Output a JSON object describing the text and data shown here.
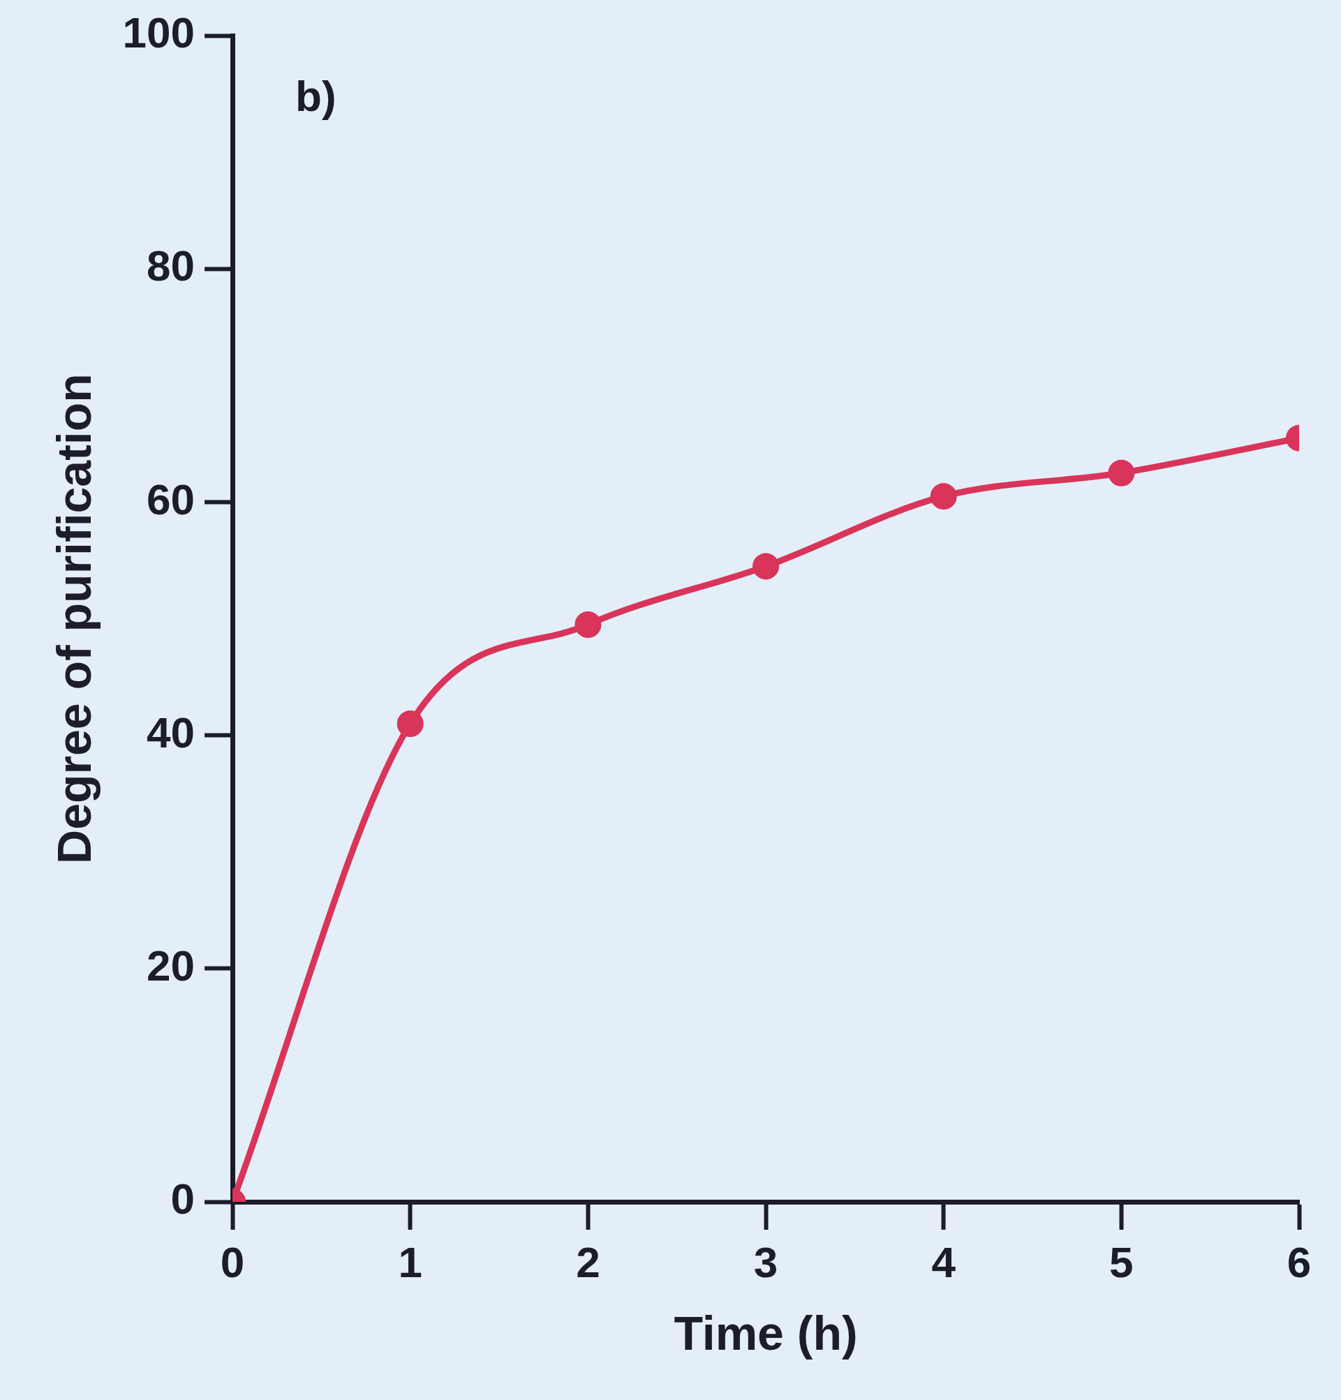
{
  "chart_data": {
    "type": "line",
    "xlabel": "Time (h)",
    "ylabel": "Degree of purification",
    "annotations": [
      "b)"
    ],
    "x": [
      0,
      1,
      2,
      3,
      4,
      5,
      6
    ],
    "series": [
      {
        "color": "#d9345a",
        "values": [
          0,
          41,
          49.5,
          54.5,
          60.5,
          62.5,
          65.5
        ]
      }
    ],
    "xlim": [
      0,
      6
    ],
    "xticks": [
      0,
      1,
      2,
      3,
      4,
      5,
      6
    ],
    "ylim": [
      0,
      100
    ],
    "yticks": [
      0,
      20,
      40,
      60,
      80,
      100
    ],
    "grid": false,
    "legend": false,
    "marker": "circle",
    "line_style": "solid"
  }
}
